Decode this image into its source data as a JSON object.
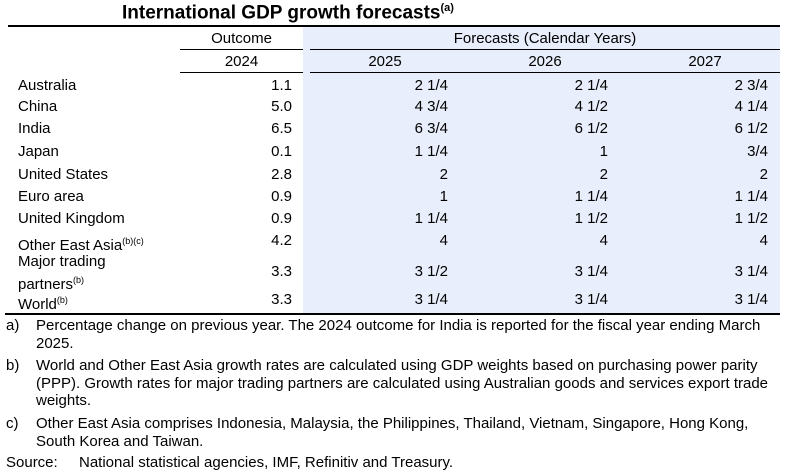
{
  "title": "International GDP growth forecasts",
  "title_note": "(a)",
  "headers": {
    "outcome": "Outcome",
    "forecasts": "Forecasts (Calendar Years)",
    "years": [
      "2024",
      "2025",
      "2026",
      "2027"
    ]
  },
  "rows": [
    {
      "label": "Australia",
      "note": "",
      "values": [
        "1.1",
        "2 1/4",
        "2 1/4",
        "2 3/4"
      ]
    },
    {
      "label": "China",
      "note": "",
      "values": [
        "5.0",
        "4 3/4",
        "4 1/2",
        "4 1/4"
      ]
    },
    {
      "label": "India",
      "note": "",
      "values": [
        "6.5",
        "6 3/4",
        "6 1/2",
        "6 1/2"
      ]
    },
    {
      "label": "Japan",
      "note": "",
      "values": [
        "0.1",
        "1 1/4",
        "1",
        "3/4"
      ]
    },
    {
      "label": "United States",
      "note": "",
      "values": [
        "2.8",
        "2",
        "2",
        "2"
      ]
    },
    {
      "label": "Euro area",
      "note": "",
      "values": [
        "0.9",
        "1",
        "1 1/4",
        "1 1/4"
      ]
    },
    {
      "label": "United Kingdom",
      "note": "",
      "values": [
        "0.9",
        "1 1/4",
        "1 1/2",
        "1 1/2"
      ]
    },
    {
      "label": "Other East Asia",
      "note": "(b)(c)",
      "values": [
        "4.2",
        "4",
        "4",
        "4"
      ]
    },
    {
      "label": "Major trading partners",
      "note": "(b)",
      "values": [
        "3.3",
        "3 1/2",
        "3 1/4",
        "3 1/4"
      ]
    },
    {
      "label": "World",
      "note": "(b)",
      "values": [
        "3.3",
        "3 1/4",
        "3 1/4",
        "3 1/4"
      ]
    }
  ],
  "footnotes": [
    {
      "key": "a)",
      "text": "Percentage change on previous year. The 2024 outcome for India is reported for the fiscal year ending March 2025."
    },
    {
      "key": "b)",
      "text": "World and Other East Asia growth rates are calculated using GDP weights based on purchasing power parity (PPP). Growth rates for major trading partners are calculated using Australian goods and services export trade weights."
    },
    {
      "key": "c)",
      "text": "Other East Asia comprises Indonesia, Malaysia, the Philippines, Thailand, Vietnam, Singapore, Hong Kong, South Korea and Taiwan."
    }
  ],
  "source": {
    "key": "Source:",
    "text": "National statistical agencies, IMF, Refinitiv and Treasury."
  },
  "colors": {
    "forecast_shade": "#e8eefb"
  }
}
